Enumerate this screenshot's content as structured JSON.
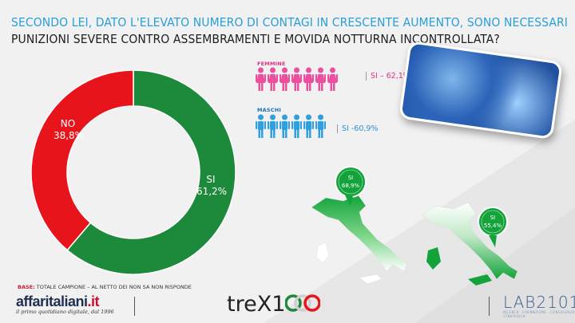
{
  "title": {
    "part_blue": "Secondo lei, dato l'elevato numero di contagi in crescente aumento, sono necessari",
    "part_dark_1": "punizioni",
    "part_dark_2": "severe contro assembramenti e movida notturna incontrollata?"
  },
  "chart_data": {
    "type": "pie",
    "donut": true,
    "slices": [
      {
        "label": "SI",
        "value_label": "61,2%",
        "value": 61.2,
        "color": "#1c8a3a"
      },
      {
        "label": "NO",
        "value_label": "38,8%",
        "value": 38.8,
        "color": "#e8141c"
      }
    ]
  },
  "gender": {
    "female": {
      "label": "Femmine",
      "value_label": "SI – 62,1%",
      "value": 62.1,
      "icons": 7,
      "color": "#ec4f9e"
    },
    "male": {
      "label": "Maschi",
      "value_label": "SI -60,9%",
      "value": 60.9,
      "icons": 6,
      "color": "#2f9fe0"
    }
  },
  "maps": {
    "north": {
      "label": "SI",
      "value_label": "68,9%",
      "value": 68.9
    },
    "south": {
      "label": "SI",
      "value_label": "55,4%",
      "value": 55.4
    }
  },
  "footer": {
    "base_bold": "BASE:",
    "base_text": "Totale campione – al netto dei non sa non risponde",
    "aff_name": "affaritaliani",
    "aff_it": ".it",
    "aff_tag": "il primo quotidiano digitale, dal 1996",
    "trex": "treX1",
    "lab": "LAB2101",
    "lab_sub": "RICERCA · FORMAZIONE · CONSULENZA STRATEGICA"
  },
  "colors": {
    "yes": "#1c8a3a",
    "no": "#e8141c",
    "female": "#ec4f9e",
    "male": "#2f9fe0",
    "title_blue": "#2a9fd8"
  }
}
